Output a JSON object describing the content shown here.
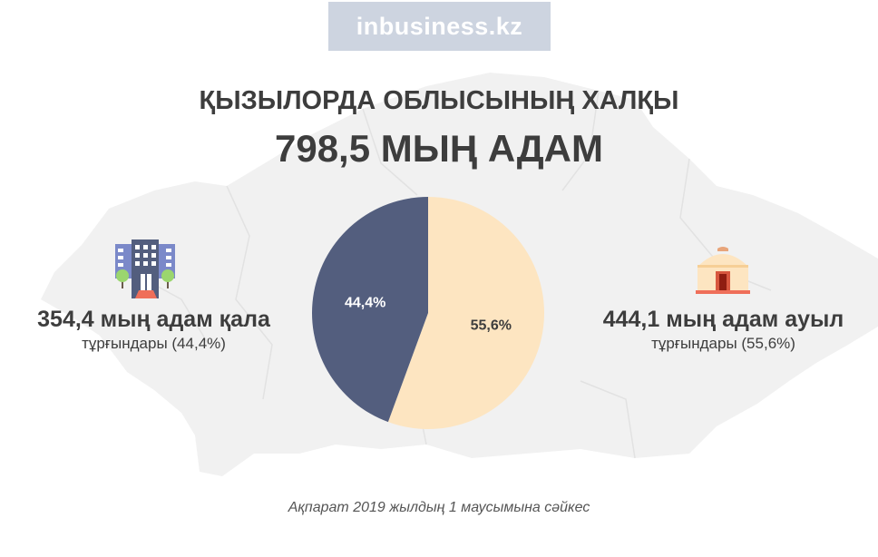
{
  "brand": {
    "logo_text": "inbusiness.kz"
  },
  "header": {
    "title": "ҚЫЗЫЛОРДА ОБЛЫСЫНЫҢ ХАЛҚЫ",
    "total": "798,5 МЫҢ АДАМ"
  },
  "urban": {
    "main": "354,4 мың адам қала",
    "sub": "тұрғындары (44,4%)",
    "icon": "city-building-icon"
  },
  "rural": {
    "main": "444,1 мың адам ауыл",
    "sub": "тұрғындары (55,6%)",
    "icon": "yurt-icon"
  },
  "footer": {
    "source": "Ақпарат 2019 жылдың 1 маусымына сәйкес"
  },
  "colors": {
    "urban": "#535e7e",
    "rural": "#fde5c1",
    "text": "#3d3d3d",
    "map": "#f1f1f1",
    "logo_bg": "#cdd4e0"
  },
  "chart_data": {
    "type": "pie",
    "categories": [
      "Қала",
      "Ауыл"
    ],
    "values": [
      44.4,
      55.6
    ],
    "labels": [
      "44,4%",
      "55,6%"
    ],
    "colors": [
      "#535e7e",
      "#fde5c1"
    ],
    "label_colors": [
      "#ffffff",
      "#3d3d3d"
    ],
    "start": "12 o'clock",
    "direction": "clockwise, Ауыл first"
  }
}
